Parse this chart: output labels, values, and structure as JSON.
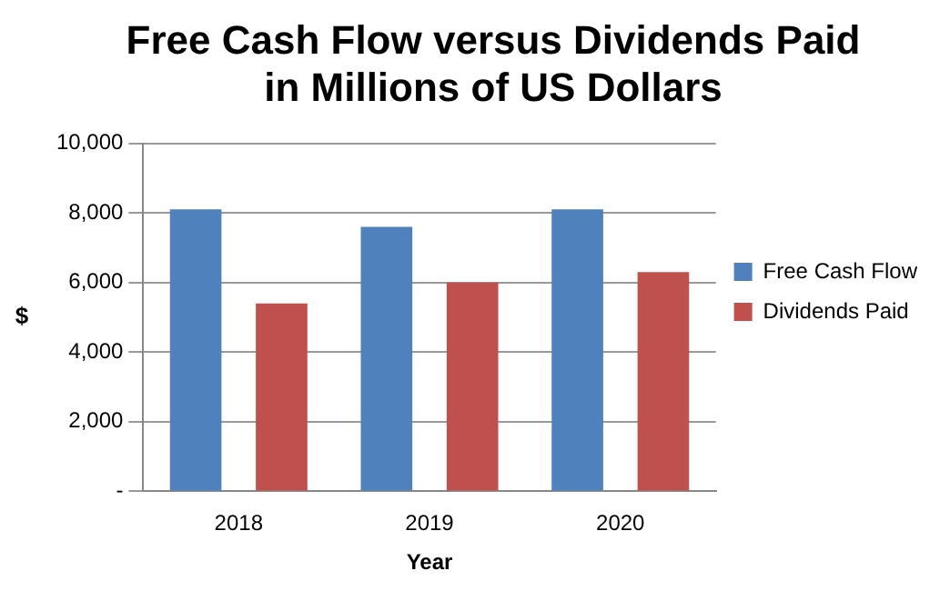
{
  "chart_data": {
    "type": "bar",
    "title": "Free Cash Flow versus Dividends Paid\nin Millions of US Dollars",
    "xlabel": "Year",
    "ylabel": "$",
    "categories": [
      "2018",
      "2019",
      "2020"
    ],
    "series": [
      {
        "name": "Free Cash Flow",
        "color": "#4f81bd",
        "values": [
          8100,
          7600,
          8100
        ]
      },
      {
        "name": "Dividends Paid",
        "color": "#c0504d",
        "values": [
          5400,
          6000,
          6300
        ]
      }
    ],
    "ylim": [
      0,
      10000
    ],
    "yticks": [
      {
        "value": 0,
        "label": "-"
      },
      {
        "value": 2000,
        "label": "2,000"
      },
      {
        "value": 4000,
        "label": "4,000"
      },
      {
        "value": 6000,
        "label": "6,000"
      },
      {
        "value": 8000,
        "label": "8,000"
      },
      {
        "value": 10000,
        "label": "10,000"
      }
    ],
    "grid": "y",
    "legend": "right"
  }
}
